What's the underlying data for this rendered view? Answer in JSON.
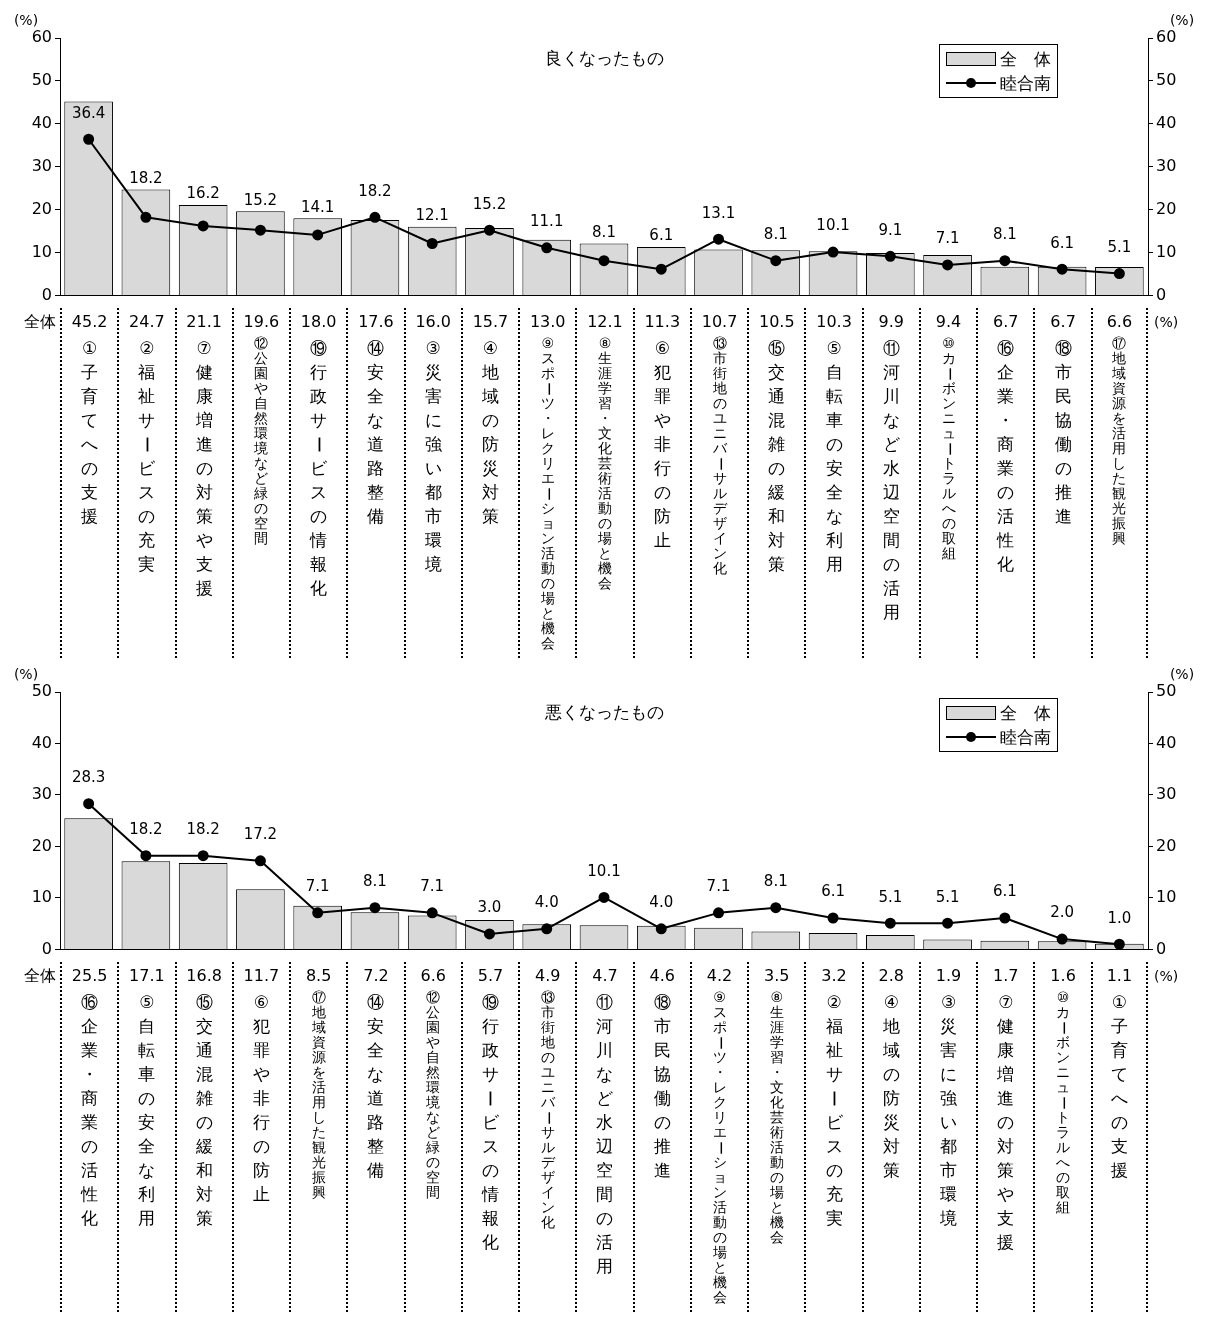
{
  "chart_data": [
    {
      "type": "bar",
      "title": "良くなったもの",
      "ylabel": "(%)",
      "y2label": "(%)",
      "categories": [
        "①子育てへの支援",
        "②福祉サービスの充実",
        "⑦健康増進の対策や支援",
        "⑫公園や自然環境など緑の空間",
        "⑲行政サービスの情報化",
        "⑭安全な道路整備",
        "③災害に強い都市環境",
        "④地域の防災対策",
        "⑨スポーツ・レクリエーション活動の場と機会",
        "⑧生涯学習・文化芸術活動の場と機会",
        "⑥犯罪や非行の防止",
        "⑬市街地のユニバーサルデザイン化",
        "⑮交通混雑の緩和対策",
        "⑤自転車の安全な利用",
        "⑪河川など水辺空間の活用",
        "⑩カーボンニュートラルへの取組",
        "⑯企業・商業の活性化",
        "⑱市民協働の推進",
        "⑰地域資源を活用した観光振興"
      ],
      "series": [
        {
          "name": "全　体",
          "type": "bar",
          "color": "#d9d9d9",
          "values": [
            45.2,
            24.7,
            21.1,
            19.6,
            18.0,
            17.6,
            16.0,
            15.7,
            13.0,
            12.1,
            11.3,
            10.7,
            10.5,
            10.3,
            9.9,
            9.4,
            6.7,
            6.7,
            6.6
          ],
          "value_labels": [
            "45.2",
            "24.7",
            "21.1",
            "19.6",
            "18.0",
            "17.6",
            "16.0",
            "15.7",
            "13.0",
            "12.1",
            "11.3",
            "10.7",
            "10.5",
            "10.3",
            "9.9",
            "9.4",
            "6.7",
            "6.7",
            "6.6"
          ]
        },
        {
          "name": "睦合南",
          "type": "line",
          "color": "#000000",
          "values": [
            36.4,
            18.2,
            16.2,
            15.2,
            14.1,
            18.2,
            12.1,
            15.2,
            11.1,
            8.1,
            6.1,
            13.1,
            8.1,
            10.1,
            9.1,
            7.1,
            8.1,
            6.1,
            5.1
          ],
          "value_labels": [
            "36.4",
            "18.2",
            "16.2",
            "15.2",
            "14.1",
            "18.2",
            "12.1",
            "15.2",
            "11.1",
            "8.1",
            "6.1",
            "13.1",
            "8.1",
            "10.1",
            "9.1",
            "7.1",
            "8.1",
            "6.1",
            "5.1"
          ]
        }
      ],
      "ylim": [
        0,
        60
      ],
      "yticks": [
        0,
        10,
        20,
        30,
        40,
        50,
        60
      ],
      "y2lim": [
        0,
        60
      ],
      "y2ticks": [
        0,
        10,
        20,
        30,
        40,
        50,
        60
      ],
      "legend": "top right",
      "marker": "circle",
      "grid": false,
      "annotations": [
        "全体",
        "(%)"
      ]
    },
    {
      "type": "bar",
      "title": "悪くなったもの",
      "ylabel": "(%)",
      "y2label": "(%)",
      "categories": [
        "⑯企業・商業の活性化",
        "⑤自転車の安全な利用",
        "⑮交通混雑の緩和対策",
        "⑥犯罪や非行の防止",
        "⑰地域資源を活用した観光振興",
        "⑭安全な道路整備",
        "⑫公園や自然環境など緑の空間",
        "⑲行政サービスの情報化",
        "⑬市街地のユニバーサルデザイン化",
        "⑪河川など水辺空間の活用",
        "⑱市民協働の推進",
        "⑨スポーツ・レクリエーション活動の場と機会",
        "⑧生涯学習・文化芸術活動の場と機会",
        "②福祉サービスの充実",
        "④地域の防災対策",
        "③災害に強い都市環境",
        "⑦健康増進の対策や支援",
        "⑩カーボンニュートラルへの取組",
        "①子育てへの支援"
      ],
      "series": [
        {
          "name": "全　体",
          "type": "bar",
          "color": "#d9d9d9",
          "values": [
            25.5,
            17.1,
            16.8,
            11.7,
            8.5,
            7.2,
            6.6,
            5.7,
            4.9,
            4.7,
            4.6,
            4.2,
            3.5,
            3.2,
            2.8,
            1.9,
            1.7,
            1.6,
            1.1
          ],
          "value_labels": [
            "25.5",
            "17.1",
            "16.8",
            "11.7",
            "8.5",
            "7.2",
            "6.6",
            "5.7",
            "4.9",
            "4.7",
            "4.6",
            "4.2",
            "3.5",
            "3.2",
            "2.8",
            "1.9",
            "1.7",
            "1.6",
            "1.1"
          ]
        },
        {
          "name": "睦合南",
          "type": "line",
          "color": "#000000",
          "values": [
            28.3,
            18.2,
            18.2,
            17.2,
            7.1,
            8.1,
            7.1,
            3.0,
            4.0,
            10.1,
            4.0,
            7.1,
            8.1,
            6.1,
            5.1,
            5.1,
            6.1,
            2.0,
            1.0
          ],
          "value_labels": [
            "28.3",
            "18.2",
            "18.2",
            "17.2",
            "7.1",
            "8.1",
            "7.1",
            "3.0",
            "4.0",
            "10.1",
            "4.0",
            "7.1",
            "8.1",
            "6.1",
            "5.1",
            "5.1",
            "6.1",
            "2.0",
            "1.0"
          ]
        }
      ],
      "ylim": [
        0,
        50
      ],
      "yticks": [
        0,
        10,
        20,
        30,
        40,
        50
      ],
      "y2lim": [
        0,
        50
      ],
      "y2ticks": [
        0,
        10,
        20,
        30,
        40,
        50
      ],
      "legend": "top right",
      "marker": "circle",
      "grid": false,
      "annotations": [
        "全体",
        "(%)"
      ]
    }
  ]
}
